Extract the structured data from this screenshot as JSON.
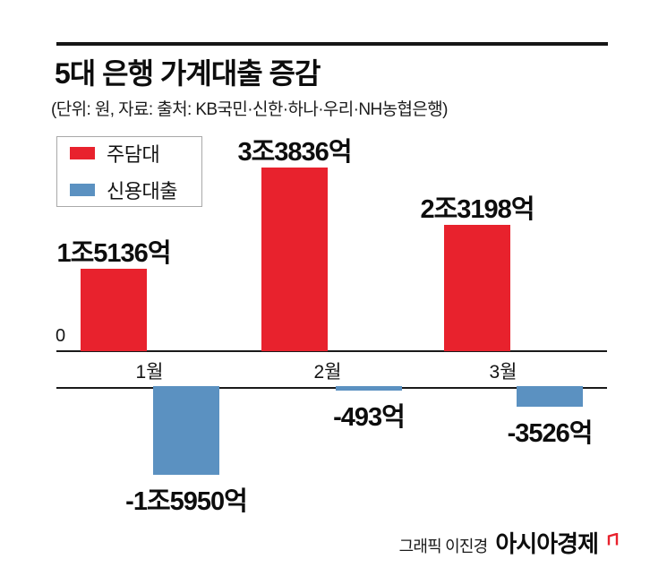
{
  "header": {
    "title": "5대 은행 가계대출 증감",
    "subtitle": "(단위: 원, 자료: 출처: KB국민·신한·하나·우리·NH농협은행)"
  },
  "legend": {
    "items": [
      {
        "label": "주담대",
        "color": "#e8222d"
      },
      {
        "label": "신용대출",
        "color": "#5b91c1"
      }
    ]
  },
  "axis": {
    "zero_label": "0"
  },
  "chart_data": {
    "type": "bar",
    "title": "5대 은행 가계대출 증감",
    "unit": "억원",
    "categories": [
      "1월",
      "2월",
      "3월"
    ],
    "series": [
      {
        "name": "주담대",
        "color": "#e8222d",
        "values": [
          15136,
          33836,
          23198
        ],
        "value_labels": [
          "1조5136억",
          "3조3836억",
          "2조3198억"
        ]
      },
      {
        "name": "신용대출",
        "color": "#5b91c1",
        "values": [
          -15950,
          -493,
          -3526
        ],
        "value_labels": [
          "-1조5950억",
          "-493억",
          "-3526억"
        ]
      }
    ],
    "grid": false,
    "legend_position": "top-left",
    "baseline": 0
  },
  "footer": {
    "credit": "그래픽 이진경",
    "brand": "아시아경제"
  },
  "colors": {
    "positive_bar": "#e8222d",
    "negative_bar": "#5b91c1",
    "rule": "#161616",
    "brand_mark": "#e8222d"
  }
}
